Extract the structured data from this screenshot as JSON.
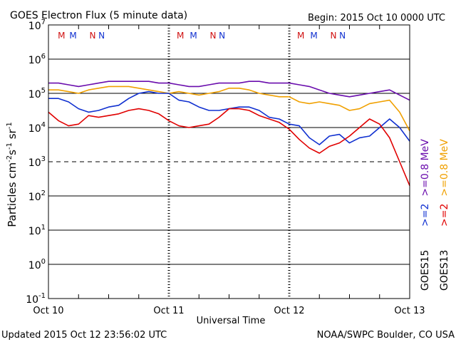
{
  "chart_data": {
    "type": "line",
    "title": "GOES Electron Flux (5 minute data)",
    "begin_label": "Begin: 2015 Oct 10 0000 UTC",
    "xlabel": "Universal Time",
    "ylabel": "Particles cm^-2 s^-1 sr^-1",
    "ylabel_parts": {
      "base": "Particles cm",
      "e1": "-2",
      "s": "s",
      "e2": "-1",
      "sr": " sr",
      "e3": "-1"
    },
    "y_scale": "log",
    "ylim_exponent": [
      -1,
      7
    ],
    "y_tick_base": "10",
    "y_tick_exponents": [
      "7",
      "6",
      "5",
      "4",
      "3",
      "2",
      "1",
      "0",
      "-1"
    ],
    "x_tick_labels": [
      "Oct 10",
      "Oct 11",
      "Oct 12",
      "Oct 13"
    ],
    "xlim_hours": [
      0,
      72
    ],
    "dashed_threshold_exponent": 3,
    "markers": [
      {
        "label": "M",
        "hour": 2.6,
        "color": "#d01010"
      },
      {
        "label": "M",
        "hour": 4.9,
        "color": "#1030d0"
      },
      {
        "label": "N",
        "hour": 8.8,
        "color": "#d01010"
      },
      {
        "label": "N",
        "hour": 10.6,
        "color": "#1030d0"
      },
      {
        "label": "M",
        "hour": 26.3,
        "color": "#d01010"
      },
      {
        "label": "M",
        "hour": 28.9,
        "color": "#1030d0"
      },
      {
        "label": "N",
        "hour": 32.8,
        "color": "#d01010"
      },
      {
        "label": "N",
        "hour": 34.6,
        "color": "#1030d0"
      },
      {
        "label": "M",
        "hour": 50.3,
        "color": "#d01010"
      },
      {
        "label": "M",
        "hour": 52.9,
        "color": "#1030d0"
      },
      {
        "label": "N",
        "hour": 56.8,
        "color": "#d01010"
      },
      {
        "label": "N",
        "hour": 58.6,
        "color": "#1030d0"
      }
    ],
    "series": [
      {
        "name": ">=0.8 MeV",
        "satellite": "GOES15",
        "color": "#6a0dad",
        "hours": [
          0,
          2,
          4,
          6,
          8,
          10,
          12,
          14,
          16,
          18,
          20,
          22,
          24,
          26,
          28,
          30,
          32,
          34,
          36,
          38,
          40,
          42,
          44,
          46,
          48,
          50,
          52,
          54,
          56,
          58,
          60,
          62,
          64,
          66,
          68,
          70,
          72
        ],
        "log_flux": [
          5.3,
          5.3,
          5.25,
          5.2,
          5.25,
          5.3,
          5.35,
          5.35,
          5.35,
          5.35,
          5.35,
          5.3,
          5.3,
          5.25,
          5.2,
          5.2,
          5.25,
          5.3,
          5.3,
          5.3,
          5.35,
          5.35,
          5.3,
          5.3,
          5.3,
          5.25,
          5.2,
          5.1,
          5.0,
          4.95,
          4.9,
          4.95,
          5.0,
          5.05,
          5.1,
          4.95,
          4.8
        ]
      },
      {
        "name": ">=0.8 MeV",
        "satellite": "GOES13",
        "color": "#f0a000",
        "hours": [
          0,
          2,
          4,
          6,
          8,
          10,
          12,
          14,
          16,
          18,
          20,
          22,
          24,
          26,
          28,
          30,
          32,
          34,
          36,
          38,
          40,
          42,
          44,
          46,
          48,
          50,
          52,
          54,
          56,
          58,
          60,
          62,
          64,
          66,
          68,
          70,
          72
        ],
        "log_flux": [
          5.1,
          5.1,
          5.05,
          5.0,
          5.1,
          5.15,
          5.2,
          5.2,
          5.2,
          5.15,
          5.1,
          5.05,
          5.0,
          5.05,
          5.0,
          4.95,
          5.0,
          5.05,
          5.15,
          5.15,
          5.1,
          5.0,
          4.95,
          4.9,
          4.9,
          4.75,
          4.7,
          4.75,
          4.7,
          4.65,
          4.5,
          4.55,
          4.7,
          4.75,
          4.8,
          4.45,
          3.9
        ]
      },
      {
        "name": ">=2 MeV",
        "satellite": "GOES15",
        "color": "#1030d0",
        "hours": [
          0,
          2,
          4,
          6,
          8,
          10,
          12,
          14,
          16,
          18,
          20,
          22,
          24,
          26,
          28,
          30,
          32,
          34,
          36,
          38,
          40,
          42,
          44,
          46,
          48,
          50,
          52,
          54,
          56,
          58,
          60,
          62,
          64,
          66,
          68,
          70,
          72
        ],
        "log_flux": [
          4.85,
          4.85,
          4.75,
          4.55,
          4.45,
          4.5,
          4.6,
          4.65,
          4.85,
          5.0,
          5.05,
          5.0,
          5.0,
          4.8,
          4.75,
          4.6,
          4.5,
          4.5,
          4.55,
          4.6,
          4.6,
          4.5,
          4.3,
          4.25,
          4.1,
          4.05,
          3.7,
          3.5,
          3.75,
          3.8,
          3.55,
          3.7,
          3.75,
          4.0,
          4.25,
          4.0,
          3.6
        ]
      },
      {
        "name": ">=2 MeV",
        "satellite": "GOES13",
        "color": "#e00000",
        "hours": [
          0,
          2,
          4,
          6,
          8,
          10,
          12,
          14,
          16,
          18,
          20,
          22,
          24,
          26,
          28,
          30,
          32,
          34,
          36,
          38,
          40,
          42,
          44,
          46,
          48,
          50,
          52,
          54,
          56,
          58,
          60,
          62,
          64,
          66,
          68,
          70,
          72
        ],
        "log_flux": [
          4.45,
          4.2,
          4.05,
          4.1,
          4.35,
          4.3,
          4.35,
          4.4,
          4.5,
          4.55,
          4.5,
          4.4,
          4.2,
          4.05,
          4.0,
          4.05,
          4.1,
          4.3,
          4.55,
          4.55,
          4.5,
          4.35,
          4.25,
          4.15,
          3.95,
          3.65,
          3.4,
          3.25,
          3.45,
          3.55,
          3.75,
          4.0,
          4.25,
          4.1,
          3.7,
          3.0,
          2.3
        ]
      }
    ],
    "legend": {
      "col1": [
        {
          "text": ">=2",
          "color": "#1030d0"
        },
        {
          "text": ">=0.8 MeV",
          "color": "#6a0dad"
        },
        {
          "text": "GOES15",
          "color": "#000000"
        }
      ],
      "col2": [
        {
          "text": ">=2",
          "color": "#e00000"
        },
        {
          "text": ">=0.8 MeV",
          "color": "#f0a000"
        },
        {
          "text": "GOES13",
          "color": "#000000"
        }
      ],
      "placement": "right, rotated vertical"
    }
  },
  "footer": {
    "updated": "Updated 2015 Oct 12 23:56:02 UTC",
    "source": "NOAA/SWPC Boulder, CO USA"
  }
}
